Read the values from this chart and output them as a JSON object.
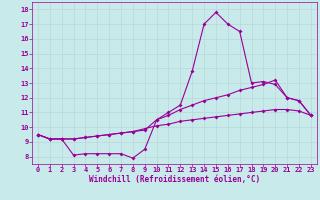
{
  "title": "",
  "xlabel": "Windchill (Refroidissement éolien,°C)",
  "ylabel": "",
  "bg_color": "#c8eaea",
  "line_color": "#990099",
  "grid_color": "#b8d8d8",
  "xlim": [
    -0.5,
    23.5
  ],
  "ylim": [
    7.5,
    18.5
  ],
  "xticks": [
    0,
    1,
    2,
    3,
    4,
    5,
    6,
    7,
    8,
    9,
    10,
    11,
    12,
    13,
    14,
    15,
    16,
    17,
    18,
    19,
    20,
    21,
    22,
    23
  ],
  "yticks": [
    8,
    9,
    10,
    11,
    12,
    13,
    14,
    15,
    16,
    17,
    18
  ],
  "line1": [
    9.5,
    9.2,
    9.2,
    8.1,
    8.2,
    8.2,
    8.2,
    8.2,
    7.9,
    8.5,
    10.5,
    11.0,
    11.5,
    13.8,
    17.0,
    17.8,
    17.0,
    16.5,
    13.0,
    13.1,
    12.9,
    12.0,
    11.8,
    10.8
  ],
  "line2": [
    9.5,
    9.2,
    9.2,
    9.2,
    9.3,
    9.4,
    9.5,
    9.6,
    9.7,
    9.8,
    10.5,
    10.8,
    11.2,
    11.5,
    11.8,
    12.0,
    12.2,
    12.5,
    12.7,
    12.9,
    13.2,
    12.0,
    11.8,
    10.8
  ],
  "line3": [
    9.5,
    9.2,
    9.2,
    9.2,
    9.3,
    9.4,
    9.5,
    9.6,
    9.7,
    9.9,
    10.1,
    10.2,
    10.4,
    10.5,
    10.6,
    10.7,
    10.8,
    10.9,
    11.0,
    11.1,
    11.2,
    11.2,
    11.1,
    10.8
  ],
  "xlabel_fontsize": 5.5,
  "tick_fontsize": 5.0,
  "linewidth": 0.8,
  "markersize": 2.0
}
